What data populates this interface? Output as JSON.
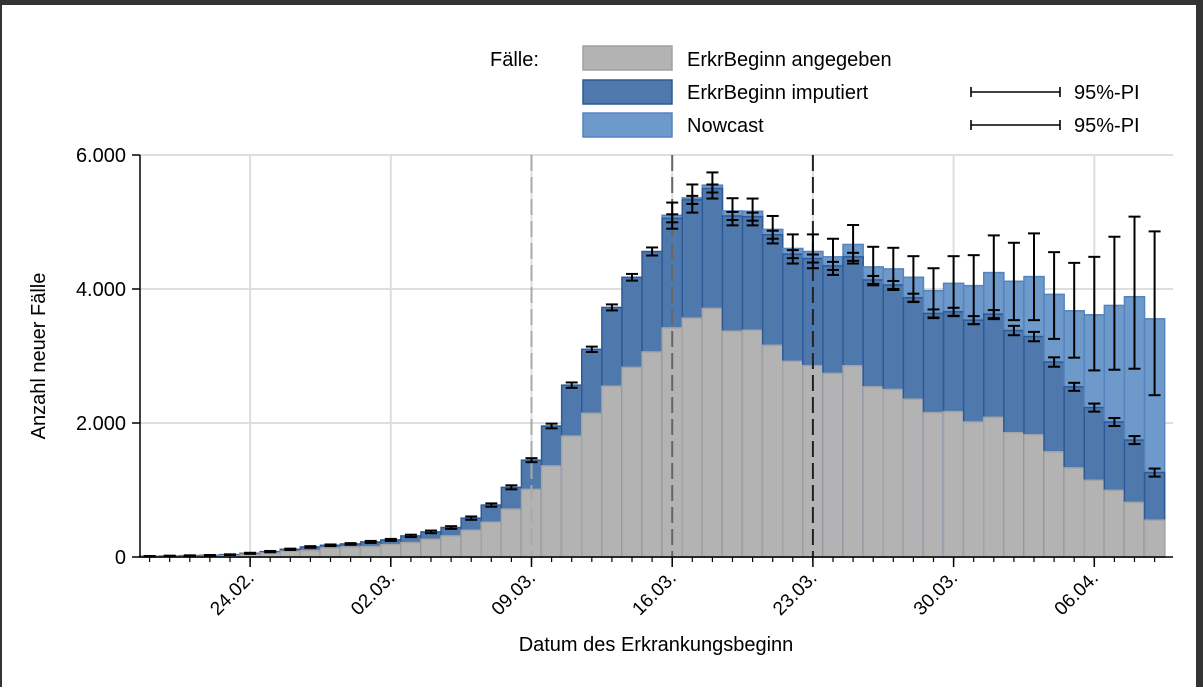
{
  "chart_data": {
    "type": "bar",
    "stacked": true,
    "xlabel": "Datum des Erkrankungsbeginn",
    "ylabel": "Anzahl neuer Fälle",
    "ylim": [
      0,
      6000
    ],
    "yticks": [
      0,
      2000,
      4000,
      6000
    ],
    "ytick_labels": [
      "0",
      "2.000",
      "4.000",
      "6.000"
    ],
    "grid": true,
    "legend": {
      "placement": "top-right",
      "title": "Fälle:",
      "entries": [
        "ErkrBeginn angegeben",
        "ErkrBeginn imputiert",
        "Nowcast"
      ],
      "pi_label": "95%-PI"
    },
    "colors": {
      "angegeben": "#b3b3b3",
      "imputiert": "#4f79ad",
      "nowcast": "#6e9acb"
    },
    "xtick_labels": [
      "24.02.",
      "02.03.",
      "09.03.",
      "16.03.",
      "23.03.",
      "30.03.",
      "06.04."
    ],
    "xtick_indices": [
      5,
      12,
      19,
      26,
      33,
      40,
      47
    ],
    "reference_lines_at": [
      "09.03.",
      "16.03.",
      "23.03."
    ],
    "categories": [
      "19.02.",
      "20.02.",
      "21.02.",
      "22.02.",
      "23.02.",
      "24.02.",
      "25.02.",
      "26.02.",
      "27.02.",
      "28.02.",
      "29.02.",
      "01.03.",
      "02.03.",
      "03.03.",
      "04.03.",
      "05.03.",
      "06.03.",
      "07.03.",
      "08.03.",
      "09.03.",
      "10.03.",
      "11.03.",
      "12.03.",
      "13.03.",
      "14.03.",
      "15.03.",
      "16.03.",
      "17.03.",
      "18.03.",
      "19.03.",
      "20.03.",
      "21.03.",
      "22.03.",
      "23.03.",
      "24.03.",
      "25.03.",
      "26.03.",
      "27.03.",
      "28.03.",
      "29.03.",
      "30.03.",
      "31.03.",
      "01.04.",
      "02.04.",
      "03.04.",
      "04.04.",
      "05.04.",
      "06.04.",
      "07.04.",
      "08.04.",
      "09.04."
    ],
    "angegeben": [
      5,
      8,
      10,
      12,
      20,
      40,
      60,
      85,
      95,
      135,
      150,
      155,
      185,
      215,
      265,
      315,
      400,
      520,
      715,
      1010,
      1360,
      1805,
      2145,
      2550,
      2830,
      3060,
      3420,
      3565,
      3710,
      3370,
      3385,
      3160,
      2920,
      2855,
      2740,
      2855,
      2540,
      2500,
      2355,
      2155,
      2170,
      2015,
      2085,
      1855,
      1825,
      1570,
      1330,
      1145,
      995,
      815,
      550
    ],
    "imputiert_total": [
      10,
      15,
      20,
      25,
      35,
      55,
      80,
      115,
      150,
      175,
      195,
      225,
      255,
      315,
      375,
      440,
      580,
      775,
      1040,
      1445,
      1955,
      2565,
      3100,
      3725,
      4175,
      4560,
      5055,
      5330,
      5500,
      5090,
      5080,
      4810,
      4520,
      4455,
      4345,
      4480,
      4135,
      4060,
      3870,
      3635,
      3660,
      3535,
      3625,
      3380,
      3290,
      2910,
      2540,
      2230,
      2015,
      1745,
      1260
    ],
    "imputiert_pi_halfwidth": [
      5,
      5,
      5,
      5,
      5,
      8,
      10,
      10,
      12,
      12,
      12,
      15,
      15,
      18,
      20,
      20,
      25,
      25,
      30,
      30,
      35,
      40,
      40,
      45,
      50,
      60,
      60,
      60,
      60,
      60,
      60,
      60,
      60,
      60,
      60,
      60,
      60,
      60,
      60,
      60,
      60,
      60,
      60,
      70,
      70,
      70,
      60,
      60,
      60,
      60,
      60
    ],
    "nowcast_total": [
      null,
      null,
      null,
      null,
      null,
      null,
      null,
      null,
      null,
      null,
      null,
      null,
      null,
      null,
      null,
      null,
      null,
      null,
      null,
      null,
      null,
      null,
      null,
      null,
      null,
      null,
      5100,
      5360,
      5550,
      5165,
      5160,
      4890,
      4605,
      4560,
      4480,
      4665,
      4330,
      4300,
      4175,
      3975,
      4085,
      4050,
      4245,
      4115,
      4185,
      3920,
      3675,
      3615,
      3755,
      3885,
      3555
    ],
    "nowcast_pi": [
      null,
      null,
      null,
      null,
      null,
      null,
      null,
      null,
      null,
      null,
      null,
      null,
      null,
      null,
      null,
      null,
      null,
      null,
      null,
      null,
      null,
      null,
      null,
      null,
      null,
      null,
      [
        4900,
        5290
      ],
      [
        5140,
        5560
      ],
      [
        5350,
        5740
      ],
      [
        4950,
        5355
      ],
      [
        4950,
        5350
      ],
      [
        4680,
        5090
      ],
      [
        4380,
        4815
      ],
      [
        4310,
        4815
      ],
      [
        4210,
        4750
      ],
      [
        4380,
        4955
      ],
      [
        4055,
        4630
      ],
      [
        3985,
        4615
      ],
      [
        3805,
        4490
      ],
      [
        3565,
        4310
      ],
      [
        3595,
        4490
      ],
      [
        3475,
        4505
      ],
      [
        3550,
        4800
      ],
      [
        3535,
        4690
      ],
      [
        3535,
        4830
      ],
      [
        3255,
        4550
      ],
      [
        2975,
        4390
      ],
      [
        2785,
        4480
      ],
      [
        2795,
        4780
      ],
      [
        2810,
        5080
      ],
      [
        2415,
        4860
      ]
    ]
  }
}
